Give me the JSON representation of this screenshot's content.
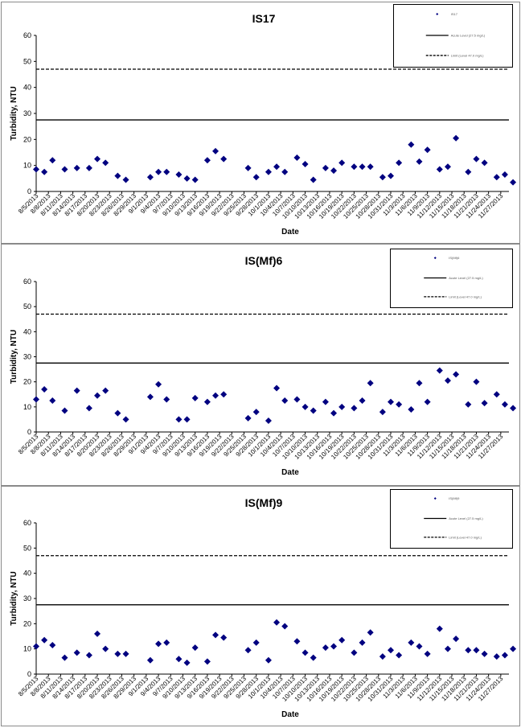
{
  "colors": {
    "marker": "#000080",
    "line": "#000000",
    "frame": "#8a8a8a"
  },
  "x_tick_labels": [
    "8/5/2013",
    "8/8/2013",
    "8/11/2013",
    "8/14/2013",
    "8/17/2013",
    "8/20/2013",
    "8/23/2013",
    "8/26/2013",
    "8/29/2013",
    "9/1/2013",
    "9/4/2013",
    "9/7/2013",
    "9/10/2013",
    "9/13/2013",
    "9/16/2013",
    "9/19/2013",
    "9/22/2013",
    "9/25/2013",
    "9/28/2013",
    "10/1/2013",
    "10/4/2013",
    "10/7/2013",
    "10/10/2013",
    "10/13/2013",
    "10/16/2013",
    "10/19/2013",
    "10/22/2013",
    "10/25/2013",
    "10/28/2013",
    "10/31/2013",
    "11/3/2013",
    "11/6/2013",
    "11/9/2013",
    "11/12/2013",
    "11/15/2013",
    "11/18/2013",
    "11/21/2013",
    "11/24/2013",
    "11/27/2013"
  ],
  "chart_data": [
    {
      "type": "scatter",
      "title": "IS17",
      "xlabel": "Date",
      "ylabel": "Turbidity, NTU",
      "ylim": [
        0,
        60
      ],
      "y_ticks": [
        0,
        10,
        20,
        30,
        40,
        50,
        60
      ],
      "xlim": [
        "8/5/2013",
        "11/29/2013"
      ],
      "grid": false,
      "legend_position": "top-right",
      "legend_entries": [
        "IS17",
        "Acute Level (27.5 mg/L)",
        "Limit (Level 47.0 mg/L)"
      ],
      "reference_lines": [
        {
          "y": 27.5,
          "style": "solid"
        },
        {
          "y": 47.0,
          "style": "dashed"
        }
      ],
      "series": [
        {
          "marker": "diamond",
          "x": [
            "8/5/2013",
            "8/7/2013",
            "8/9/2013",
            "8/12/2013",
            "8/15/2013",
            "8/18/2013",
            "8/20/2013",
            "8/22/2013",
            "8/25/2013",
            "8/27/2013",
            "9/2/2013",
            "9/4/2013",
            "9/6/2013",
            "9/9/2013",
            "9/11/2013",
            "9/13/2013",
            "9/16/2013",
            "9/18/2013",
            "9/20/2013",
            "9/26/2013",
            "9/28/2013",
            "10/1/2013",
            "10/3/2013",
            "10/5/2013",
            "10/8/2013",
            "10/10/2013",
            "10/12/2013",
            "10/15/2013",
            "10/17/2013",
            "10/19/2013",
            "10/22/2013",
            "10/24/2013",
            "10/26/2013",
            "10/29/2013",
            "10/31/2013",
            "11/2/2013",
            "11/5/2013",
            "11/7/2013",
            "11/9/2013",
            "11/12/2013",
            "11/14/2013",
            "11/16/2013",
            "11/19/2013",
            "11/21/2013",
            "11/23/2013",
            "11/26/2013",
            "11/28/2013",
            "11/30/2013"
          ],
          "y": [
            8.5,
            7.5,
            12,
            8.5,
            9,
            9,
            12.5,
            11,
            6,
            4.5,
            5.5,
            7.5,
            7.5,
            6.5,
            5,
            4.5,
            12,
            15.5,
            12.5,
            9,
            5.5,
            7.5,
            9.5,
            7.5,
            13,
            10.5,
            4.5,
            9,
            8,
            11,
            9.5,
            9.5,
            9.5,
            5.5,
            6,
            11,
            18,
            11.5,
            16,
            8.5,
            9.5,
            20.5,
            7.5,
            12.5,
            11,
            5.5,
            6.5,
            3.5
          ]
        }
      ]
    },
    {
      "type": "scatter",
      "title": "IS(Mf)6",
      "xlabel": "Date",
      "ylabel": "Turbidity, NTU",
      "ylim": [
        0,
        60
      ],
      "y_ticks": [
        0,
        10,
        20,
        30,
        40,
        50,
        60
      ],
      "xlim": [
        "8/5/2013",
        "11/29/2013"
      ],
      "grid": false,
      "legend_position": "top-right",
      "legend_entries": [
        "IS(Mf)6",
        "Acute Level (27.5 mg/L)",
        "Limit (Level 47.0 mg/L)"
      ],
      "reference_lines": [
        {
          "y": 27.5,
          "style": "solid"
        },
        {
          "y": 47.0,
          "style": "dashed"
        }
      ],
      "series": [
        {
          "marker": "diamond",
          "x": [
            "8/5/2013",
            "8/7/2013",
            "8/9/2013",
            "8/12/2013",
            "8/15/2013",
            "8/18/2013",
            "8/20/2013",
            "8/22/2013",
            "8/25/2013",
            "8/27/2013",
            "9/2/2013",
            "9/4/2013",
            "9/6/2013",
            "9/9/2013",
            "9/11/2013",
            "9/13/2013",
            "9/16/2013",
            "9/18/2013",
            "9/20/2013",
            "9/26/2013",
            "9/28/2013",
            "10/1/2013",
            "10/3/2013",
            "10/5/2013",
            "10/8/2013",
            "10/10/2013",
            "10/12/2013",
            "10/15/2013",
            "10/17/2013",
            "10/19/2013",
            "10/22/2013",
            "10/24/2013",
            "10/26/2013",
            "10/29/2013",
            "10/31/2013",
            "11/2/2013",
            "11/5/2013",
            "11/7/2013",
            "11/9/2013",
            "11/12/2013",
            "11/14/2013",
            "11/16/2013",
            "11/19/2013",
            "11/21/2013",
            "11/23/2013",
            "11/26/2013",
            "11/28/2013",
            "11/30/2013"
          ],
          "y": [
            13,
            17,
            12.5,
            8.5,
            16.5,
            9.5,
            14.5,
            16.5,
            7.5,
            5,
            14,
            19,
            13,
            5,
            5,
            13.5,
            12,
            14.5,
            15,
            5.5,
            8,
            4.5,
            17.5,
            12.5,
            13,
            10,
            8.5,
            12,
            7.5,
            10,
            9.5,
            12.5,
            19.5,
            8,
            12,
            11,
            9,
            19.5,
            12,
            24.5,
            20.5,
            23,
            11,
            20,
            11.5,
            15,
            11,
            9.5
          ]
        }
      ]
    },
    {
      "type": "scatter",
      "title": "IS(Mf)9",
      "xlabel": "Date",
      "ylabel": "Turbidity, NTU",
      "ylim": [
        0,
        60
      ],
      "y_ticks": [
        0,
        10,
        20,
        30,
        40,
        50,
        60
      ],
      "xlim": [
        "8/5/2013",
        "11/29/2013"
      ],
      "grid": false,
      "legend_position": "top-right",
      "legend_entries": [
        "IS(Mf)9",
        "Acute Level (27.5 mg/L)",
        "Limit (Level 47.0 mg/L)"
      ],
      "reference_lines": [
        {
          "y": 27.5,
          "style": "solid"
        },
        {
          "y": 47.0,
          "style": "dashed"
        }
      ],
      "series": [
        {
          "marker": "diamond",
          "x": [
            "8/5/2013",
            "8/7/2013",
            "8/9/2013",
            "8/12/2013",
            "8/15/2013",
            "8/18/2013",
            "8/20/2013",
            "8/22/2013",
            "8/25/2013",
            "8/27/2013",
            "9/2/2013",
            "9/4/2013",
            "9/6/2013",
            "9/9/2013",
            "9/11/2013",
            "9/13/2013",
            "9/16/2013",
            "9/18/2013",
            "9/20/2013",
            "9/26/2013",
            "9/28/2013",
            "10/1/2013",
            "10/3/2013",
            "10/5/2013",
            "10/8/2013",
            "10/10/2013",
            "10/12/2013",
            "10/15/2013",
            "10/17/2013",
            "10/19/2013",
            "10/22/2013",
            "10/24/2013",
            "10/26/2013",
            "10/29/2013",
            "10/31/2013",
            "11/2/2013",
            "11/5/2013",
            "11/7/2013",
            "11/9/2013",
            "11/12/2013",
            "11/14/2013",
            "11/16/2013",
            "11/19/2013",
            "11/21/2013",
            "11/23/2013",
            "11/26/2013",
            "11/28/2013",
            "11/30/2013"
          ],
          "y": [
            11,
            13.5,
            11.5,
            6.5,
            8.5,
            7.5,
            16,
            10,
            8,
            8,
            5.5,
            12,
            12.5,
            6,
            4.5,
            10.5,
            5,
            15.5,
            14.5,
            9.5,
            12.5,
            5.5,
            20.5,
            19,
            13,
            8.5,
            6.5,
            10.5,
            11,
            13.5,
            8.5,
            12.5,
            16.5,
            7,
            9.5,
            7.5,
            12.5,
            11,
            8,
            18,
            10,
            14,
            9.5,
            9.5,
            8,
            7,
            7.5,
            10
          ]
        }
      ]
    }
  ]
}
